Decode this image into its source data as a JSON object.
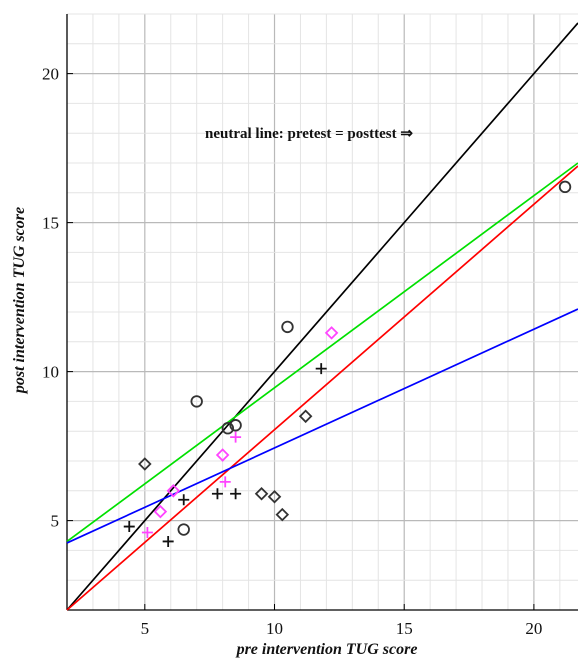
{
  "chart_data": {
    "type": "scatter",
    "title": "",
    "xlabel": "pre intervention TUG score",
    "ylabel": "post intervention TUG score",
    "xlim": [
      2,
      21.7
    ],
    "ylim": [
      2,
      22
    ],
    "x_ticks": [
      "5",
      "10",
      "15",
      "20"
    ],
    "y_ticks": [
      "5",
      "10",
      "15",
      "20"
    ],
    "grid": true,
    "minor_grid": true,
    "legend": "none",
    "annotation": "neutral line: pretest = posttest ⇒",
    "lines": [
      {
        "color": "#000000",
        "points": [
          [
            2,
            2
          ],
          [
            21.7,
            21.7
          ]
        ]
      },
      {
        "color": "#00e000",
        "points": [
          [
            2,
            4.3
          ],
          [
            21.7,
            17.0
          ]
        ]
      },
      {
        "color": "#ff0000",
        "points": [
          [
            2,
            2.0
          ],
          [
            21.7,
            16.9
          ]
        ]
      },
      {
        "color": "#0000ff",
        "points": [
          [
            2,
            4.25
          ],
          [
            21.7,
            12.1
          ]
        ]
      }
    ],
    "series": [
      {
        "marker": "circle",
        "color": "#333333",
        "points": [
          [
            21.2,
            16.2
          ],
          [
            10.5,
            11.5
          ],
          [
            7.0,
            9.0
          ],
          [
            8.5,
            8.2
          ],
          [
            8.2,
            8.1
          ],
          [
            6.5,
            4.7
          ]
        ]
      },
      {
        "marker": "diamond-open",
        "color": "#333333",
        "points": [
          [
            5.0,
            6.9
          ],
          [
            11.2,
            8.5
          ],
          [
            9.5,
            5.9
          ],
          [
            10.0,
            5.8
          ],
          [
            10.3,
            5.2
          ]
        ]
      },
      {
        "marker": "diamond-open",
        "color": "#ff44ff",
        "points": [
          [
            12.2,
            11.3
          ],
          [
            8.0,
            7.2
          ],
          [
            6.1,
            6.0
          ],
          [
            5.6,
            5.3
          ]
        ]
      },
      {
        "marker": "plus",
        "color": "#111111",
        "points": [
          [
            11.8,
            10.1
          ],
          [
            4.4,
            4.8
          ],
          [
            5.9,
            4.3
          ],
          [
            6.5,
            5.7
          ],
          [
            7.8,
            5.9
          ],
          [
            8.5,
            5.9
          ]
        ]
      },
      {
        "marker": "plus",
        "color": "#ff44ff",
        "points": [
          [
            8.5,
            7.8
          ],
          [
            8.1,
            6.3
          ],
          [
            5.1,
            4.6
          ]
        ]
      }
    ]
  }
}
